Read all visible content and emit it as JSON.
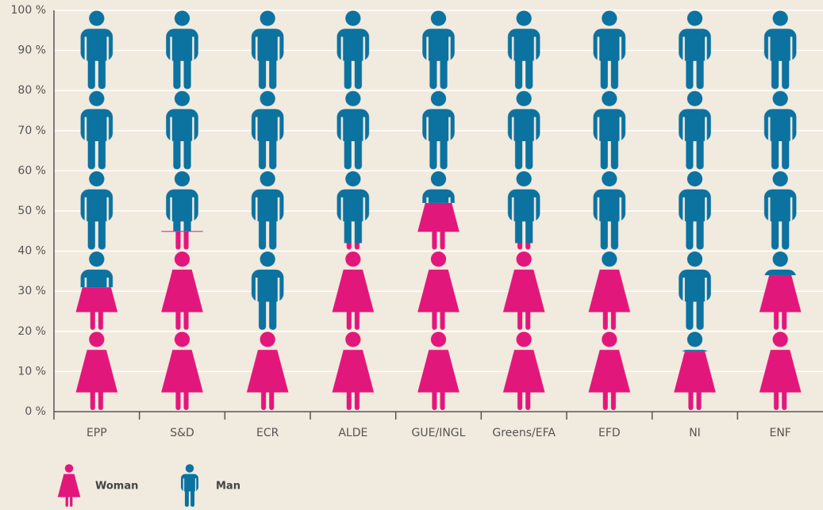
{
  "chart_data": {
    "type": "pictograph_stacked",
    "categories": [
      "EPP",
      "S&D",
      "ECR",
      "ALDE",
      "GUE/INGL",
      "Greens/EFA",
      "EFD",
      "NI",
      "ENF"
    ],
    "series": [
      {
        "name": "Woman",
        "color": "#e2177b",
        "values": [
          31,
          45,
          20,
          42,
          52,
          42,
          36,
          15,
          34
        ]
      },
      {
        "name": "Man",
        "color": "#0c72a0",
        "values": [
          69,
          55,
          80,
          58,
          48,
          58,
          64,
          85,
          66
        ]
      }
    ],
    "ylim": [
      0,
      100
    ],
    "yticks": [
      {
        "value": 0,
        "label": "0 %"
      },
      {
        "value": 10,
        "label": "10 %"
      },
      {
        "value": 20,
        "label": "20 %"
      },
      {
        "value": 30,
        "label": "30 %"
      },
      {
        "value": 40,
        "label": "40 %"
      },
      {
        "value": 50,
        "label": "50 %"
      },
      {
        "value": 60,
        "label": "60 %"
      },
      {
        "value": 70,
        "label": "70 %"
      },
      {
        "value": 80,
        "label": "80 %"
      },
      {
        "value": 90,
        "label": "90 %"
      },
      {
        "value": 100,
        "label": "100 %"
      }
    ],
    "grid": true
  }
}
